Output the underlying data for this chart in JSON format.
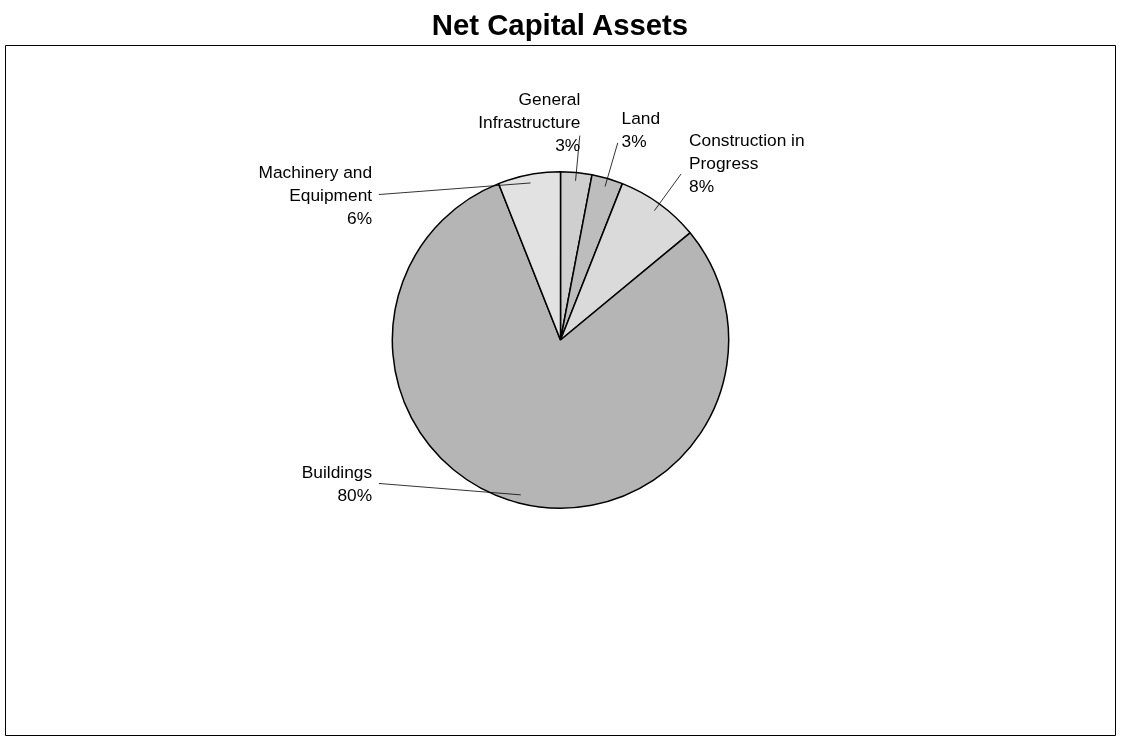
{
  "chart_data": {
    "type": "pie",
    "title": "Net Capital Assets",
    "categories": [
      "General Infrastructure",
      "Land",
      "Construction in Progress",
      "Buildings",
      "Machinery and Equipment"
    ],
    "values": [
      3,
      3,
      8,
      80,
      6
    ],
    "value_labels": [
      "3%",
      "3%",
      "8%",
      "80%",
      "6%"
    ],
    "colors": [
      "#cfcfcf",
      "#bdbdbd",
      "#dadada",
      "#b5b5b5",
      "#e2e2e2"
    ]
  }
}
